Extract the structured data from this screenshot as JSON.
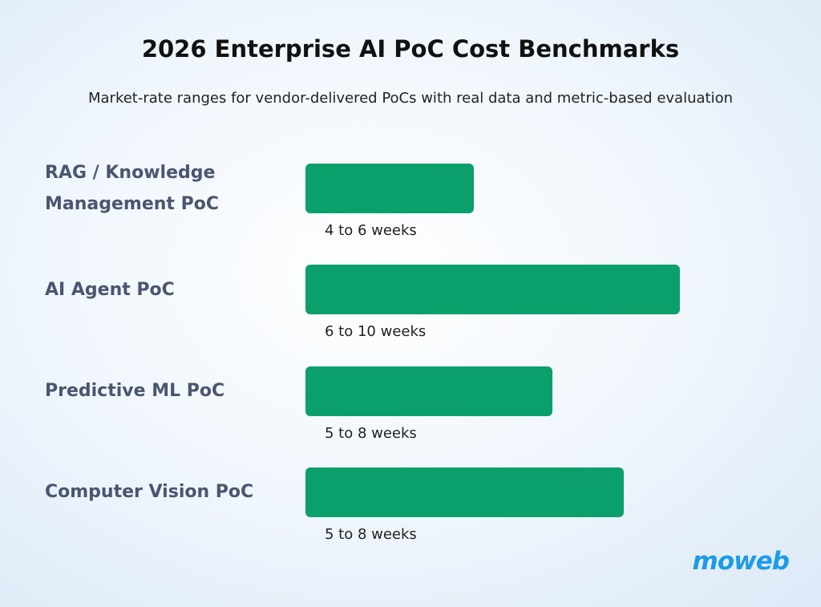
{
  "chart_data": {
    "type": "hbar",
    "title": "2026 Enterprise AI PoC Cost Benchmarks",
    "subtitle": "Market-rate ranges for vendor-delivered PoCs with real data and metric-based evaluation",
    "categories": [
      "RAG / Knowledge Management PoC",
      "AI Agent PoC",
      "Predictive ML PoC",
      "Computer Vision PoC"
    ],
    "values": [
      45,
      100,
      66,
      85
    ],
    "annotations": [
      "4 to 6 weeks",
      "6 to 10 weeks",
      "5 to 8 weeks",
      "5 to 8 weeks"
    ],
    "xlim": [
      0,
      100
    ],
    "color": "#0ba06b",
    "brand": "moweb"
  }
}
